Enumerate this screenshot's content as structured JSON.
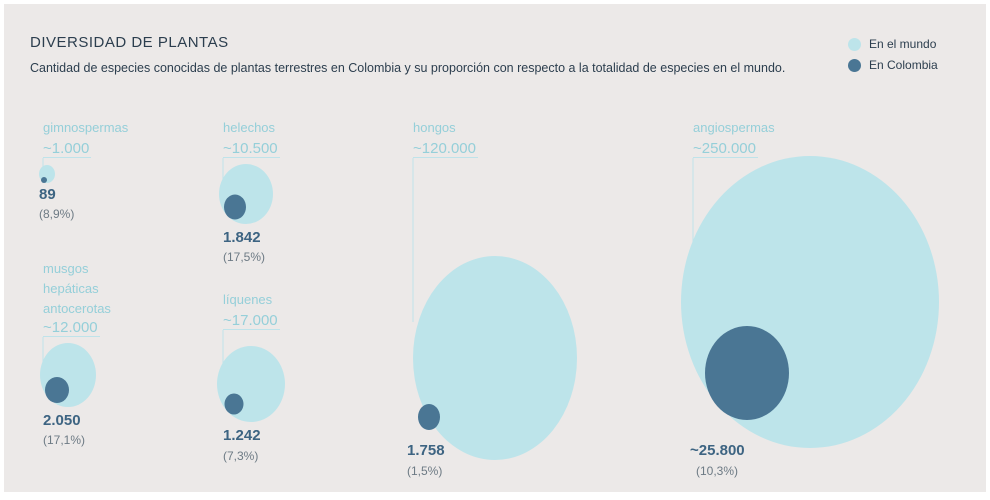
{
  "chart_data": {
    "type": "bubble",
    "title": "DIVERSIDAD DE PLANTAS",
    "subtitle": "Cantidad de especies conocidas de plantas terrestres en Colombia y su proporción con respecto a la totalidad de especies en el mundo.",
    "legend": [
      {
        "label": "En el mundo",
        "color": "#bde4ea"
      },
      {
        "label": "En Colombia",
        "color": "#4a7694"
      }
    ],
    "legend_placement": "top-right",
    "groups": [
      {
        "name": "gimnospermas",
        "world_label": "~1.000",
        "world": 1000,
        "colombia_label": "89",
        "colombia": 89,
        "pct": "(8,9%)"
      },
      {
        "name": "helechos",
        "world_label": "~10.500",
        "world": 10500,
        "colombia_label": "1.842",
        "colombia": 1842,
        "pct": "(17,5%)"
      },
      {
        "name": "musgos hepáticas antocerotas",
        "name_lines": [
          "musgos",
          "hepáticas",
          "antocerotas"
        ],
        "world_label": "~12.000",
        "world": 12000,
        "colombia_label": "2.050",
        "colombia": 2050,
        "pct": "(17,1%)"
      },
      {
        "name": "líquenes",
        "world_label": "~17.000",
        "world": 17000,
        "colombia_label": "1.242",
        "colombia": 1242,
        "pct": "(7,3%)"
      },
      {
        "name": "hongos",
        "world_label": "~120.000",
        "world": 120000,
        "colombia_label": "1.758",
        "colombia": 1758,
        "pct": "(1,5%)"
      },
      {
        "name": "angiospermas",
        "world_label": "~250.000",
        "world": 250000,
        "colombia_label": "~25.800",
        "colombia": 25800,
        "pct": "(10,3%)"
      }
    ]
  }
}
